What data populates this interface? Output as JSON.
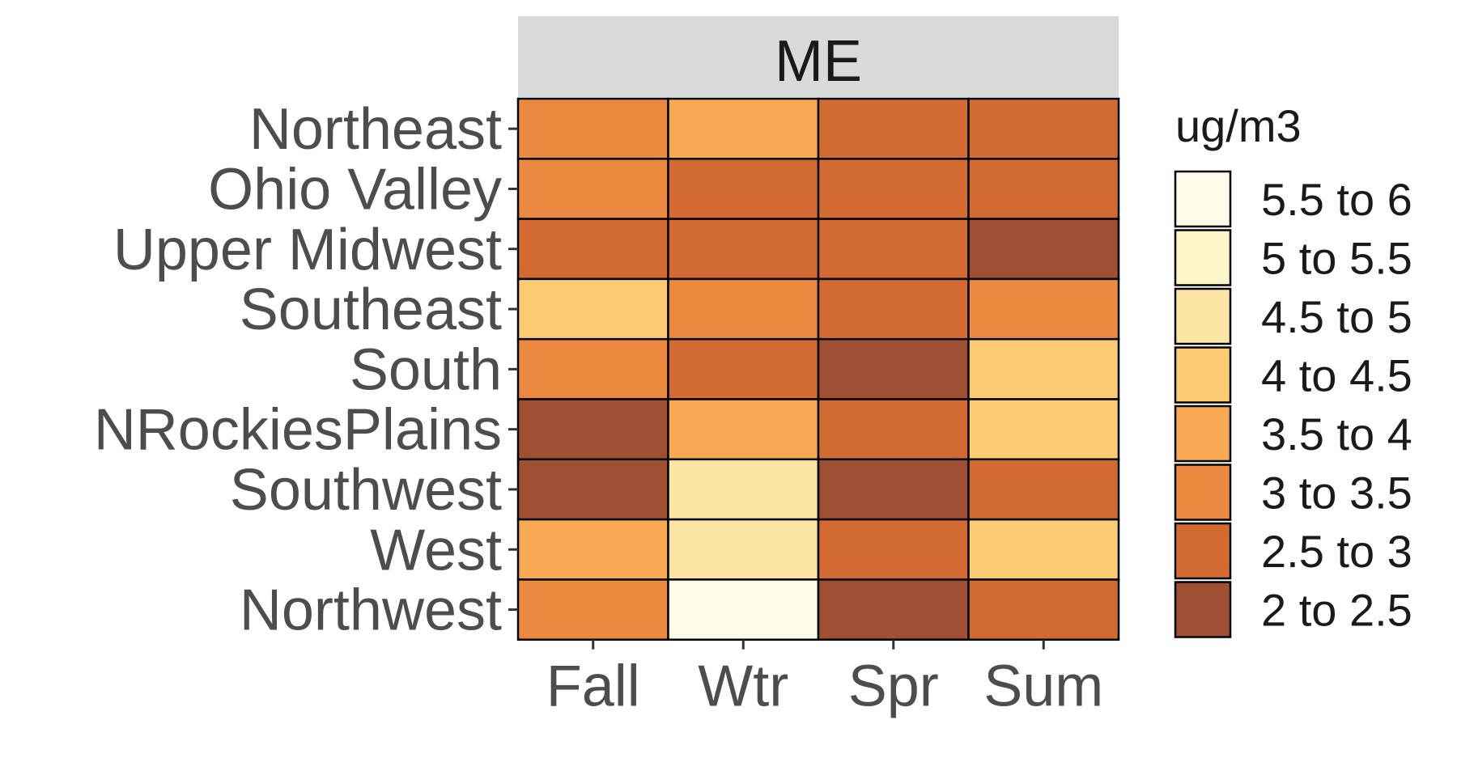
{
  "chart_data": {
    "type": "heatmap",
    "facet_title": "ME",
    "x_categories": [
      "Fall",
      "Wtr",
      "Spr",
      "Sum"
    ],
    "y_categories": [
      "Northeast",
      "Ohio Valley",
      "Upper Midwest",
      "Southeast",
      "South",
      "NRockiesPlains",
      "Southwest",
      "West",
      "Northwest"
    ],
    "values": [
      [
        "3 to 3.5",
        "3.5 to 4",
        "2.5 to 3",
        "2.5 to 3"
      ],
      [
        "3 to 3.5",
        "2.5 to 3",
        "2.5 to 3",
        "2.5 to 3"
      ],
      [
        "2.5 to 3",
        "2.5 to 3",
        "2.5 to 3",
        "2 to 2.5"
      ],
      [
        "4 to 4.5",
        "3 to 3.5",
        "2.5 to 3",
        "3 to 3.5"
      ],
      [
        "3 to 3.5",
        "2.5 to 3",
        "2 to 2.5",
        "4 to 4.5"
      ],
      [
        "2 to 2.5",
        "3.5 to 4",
        "2.5 to 3",
        "4 to 4.5"
      ],
      [
        "2 to 2.5",
        "4.5 to 5",
        "2 to 2.5",
        "2.5 to 3"
      ],
      [
        "3.5 to 4",
        "4.5 to 5",
        "2.5 to 3",
        "4 to 4.5"
      ],
      [
        "3 to 3.5",
        "5.5 to 6",
        "2 to 2.5",
        "2.5 to 3"
      ]
    ],
    "legend": {
      "title": "ug/m3",
      "position": "right",
      "entries": [
        {
          "label": "5.5 to 6",
          "color": "#FEFBE8"
        },
        {
          "label": "5 to 5.5",
          "color": "#FDF5C7"
        },
        {
          "label": "4.5 to 5",
          "color": "#FBE5A5"
        },
        {
          "label": "4 to 4.5",
          "color": "#FACB72"
        },
        {
          "label": "3.5 to 4",
          "color": "#F8A851"
        },
        {
          "label": "3 to 3.5",
          "color": "#EC8941"
        },
        {
          "label": "2.5 to 3",
          "color": "#D26A32"
        },
        {
          "label": "2 to 2.5",
          "color": "#A05032"
        }
      ]
    },
    "grid": true,
    "strip_color": "#D9D9D9"
  }
}
